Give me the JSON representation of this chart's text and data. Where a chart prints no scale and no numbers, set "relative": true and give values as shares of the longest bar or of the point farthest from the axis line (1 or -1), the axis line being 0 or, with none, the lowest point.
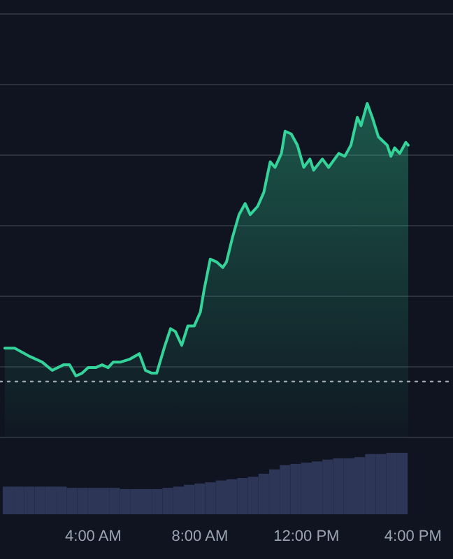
{
  "chart_data": [
    {
      "type": "area",
      "relative": true,
      "x": [
        0.68,
        1.05,
        1.62,
        2.08,
        2.46,
        2.88,
        3.11,
        3.35,
        3.58,
        3.81,
        4.09,
        4.33,
        4.56,
        4.75,
        5.03,
        5.36,
        5.73,
        5.96,
        6.2,
        6.38,
        6.66,
        6.9,
        7.08,
        7.32,
        7.55,
        7.79,
        8.02,
        8.16,
        8.39,
        8.63,
        8.86,
        9.0,
        9.23,
        9.47,
        9.7,
        9.89,
        10.17,
        10.4,
        10.64,
        10.82,
        11.06,
        11.2,
        11.43,
        11.66,
        11.9,
        12.13,
        12.27,
        12.6,
        12.83,
        13.21,
        13.44,
        13.67,
        13.91,
        14.05,
        14.28,
        14.47,
        14.7,
        15.03,
        15.17,
        15.31,
        15.5,
        15.73,
        15.82
      ],
      "series": [
        {
          "color": "#34d399",
          "values": [
            0.12,
            0.12,
            0.09,
            0.07,
            0.04,
            0.06,
            0.06,
            0.02,
            0.03,
            0.05,
            0.05,
            0.06,
            0.05,
            0.07,
            0.07,
            0.08,
            0.1,
            0.04,
            0.03,
            0.03,
            0.12,
            0.19,
            0.18,
            0.13,
            0.2,
            0.2,
            0.25,
            0.33,
            0.44,
            0.43,
            0.41,
            0.43,
            0.52,
            0.6,
            0.64,
            0.6,
            0.63,
            0.68,
            0.79,
            0.77,
            0.82,
            0.9,
            0.89,
            0.85,
            0.77,
            0.8,
            0.76,
            0.8,
            0.77,
            0.82,
            0.81,
            0.85,
            0.95,
            0.92,
            1,
            0.95,
            0.88,
            0.85,
            0.81,
            0.84,
            0.82,
            0.86,
            0.85
          ]
        }
      ],
      "xlim": [
        0.5,
        17.5
      ],
      "grid": true,
      "marker": "none",
      "line_style": "solid",
      "ref_lines": [
        {
          "axis": "y",
          "value": 0,
          "line_style": "dotted",
          "color": "#9ca3af"
        }
      ]
    },
    {
      "type": "bar",
      "relative": true,
      "color": "#2e3658",
      "x": [
        0.8,
        1.2,
        1.6,
        2.0,
        2.4,
        2.8,
        3.2,
        3.6,
        4.0,
        4.4,
        4.8,
        5.2,
        5.6,
        6.0,
        6.4,
        6.8,
        7.2,
        7.6,
        8.0,
        8.4,
        8.8,
        9.2,
        9.6,
        10.0,
        10.4,
        10.8,
        11.2,
        11.6,
        12.0,
        12.4,
        12.8,
        13.2,
        13.6,
        14.0,
        14.4,
        14.8,
        15.2,
        15.6
      ],
      "values": [
        0.45,
        0.45,
        0.45,
        0.45,
        0.45,
        0.45,
        0.43,
        0.43,
        0.43,
        0.43,
        0.43,
        0.41,
        0.41,
        0.41,
        0.41,
        0.43,
        0.45,
        0.48,
        0.5,
        0.52,
        0.55,
        0.57,
        0.59,
        0.61,
        0.66,
        0.73,
        0.8,
        0.82,
        0.84,
        0.86,
        0.89,
        0.91,
        0.91,
        0.93,
        0.98,
        0.98,
        1,
        1
      ],
      "xlim": [
        0.5,
        17.5
      ],
      "xticks": [
        {
          "value": 4,
          "label": "4:00 AM"
        },
        {
          "value": 8,
          "label": "8:00 AM"
        },
        {
          "value": 12,
          "label": "12:00 PM"
        },
        {
          "value": 16,
          "label": "4:00 PM"
        }
      ],
      "tick_labels": "x"
    }
  ]
}
